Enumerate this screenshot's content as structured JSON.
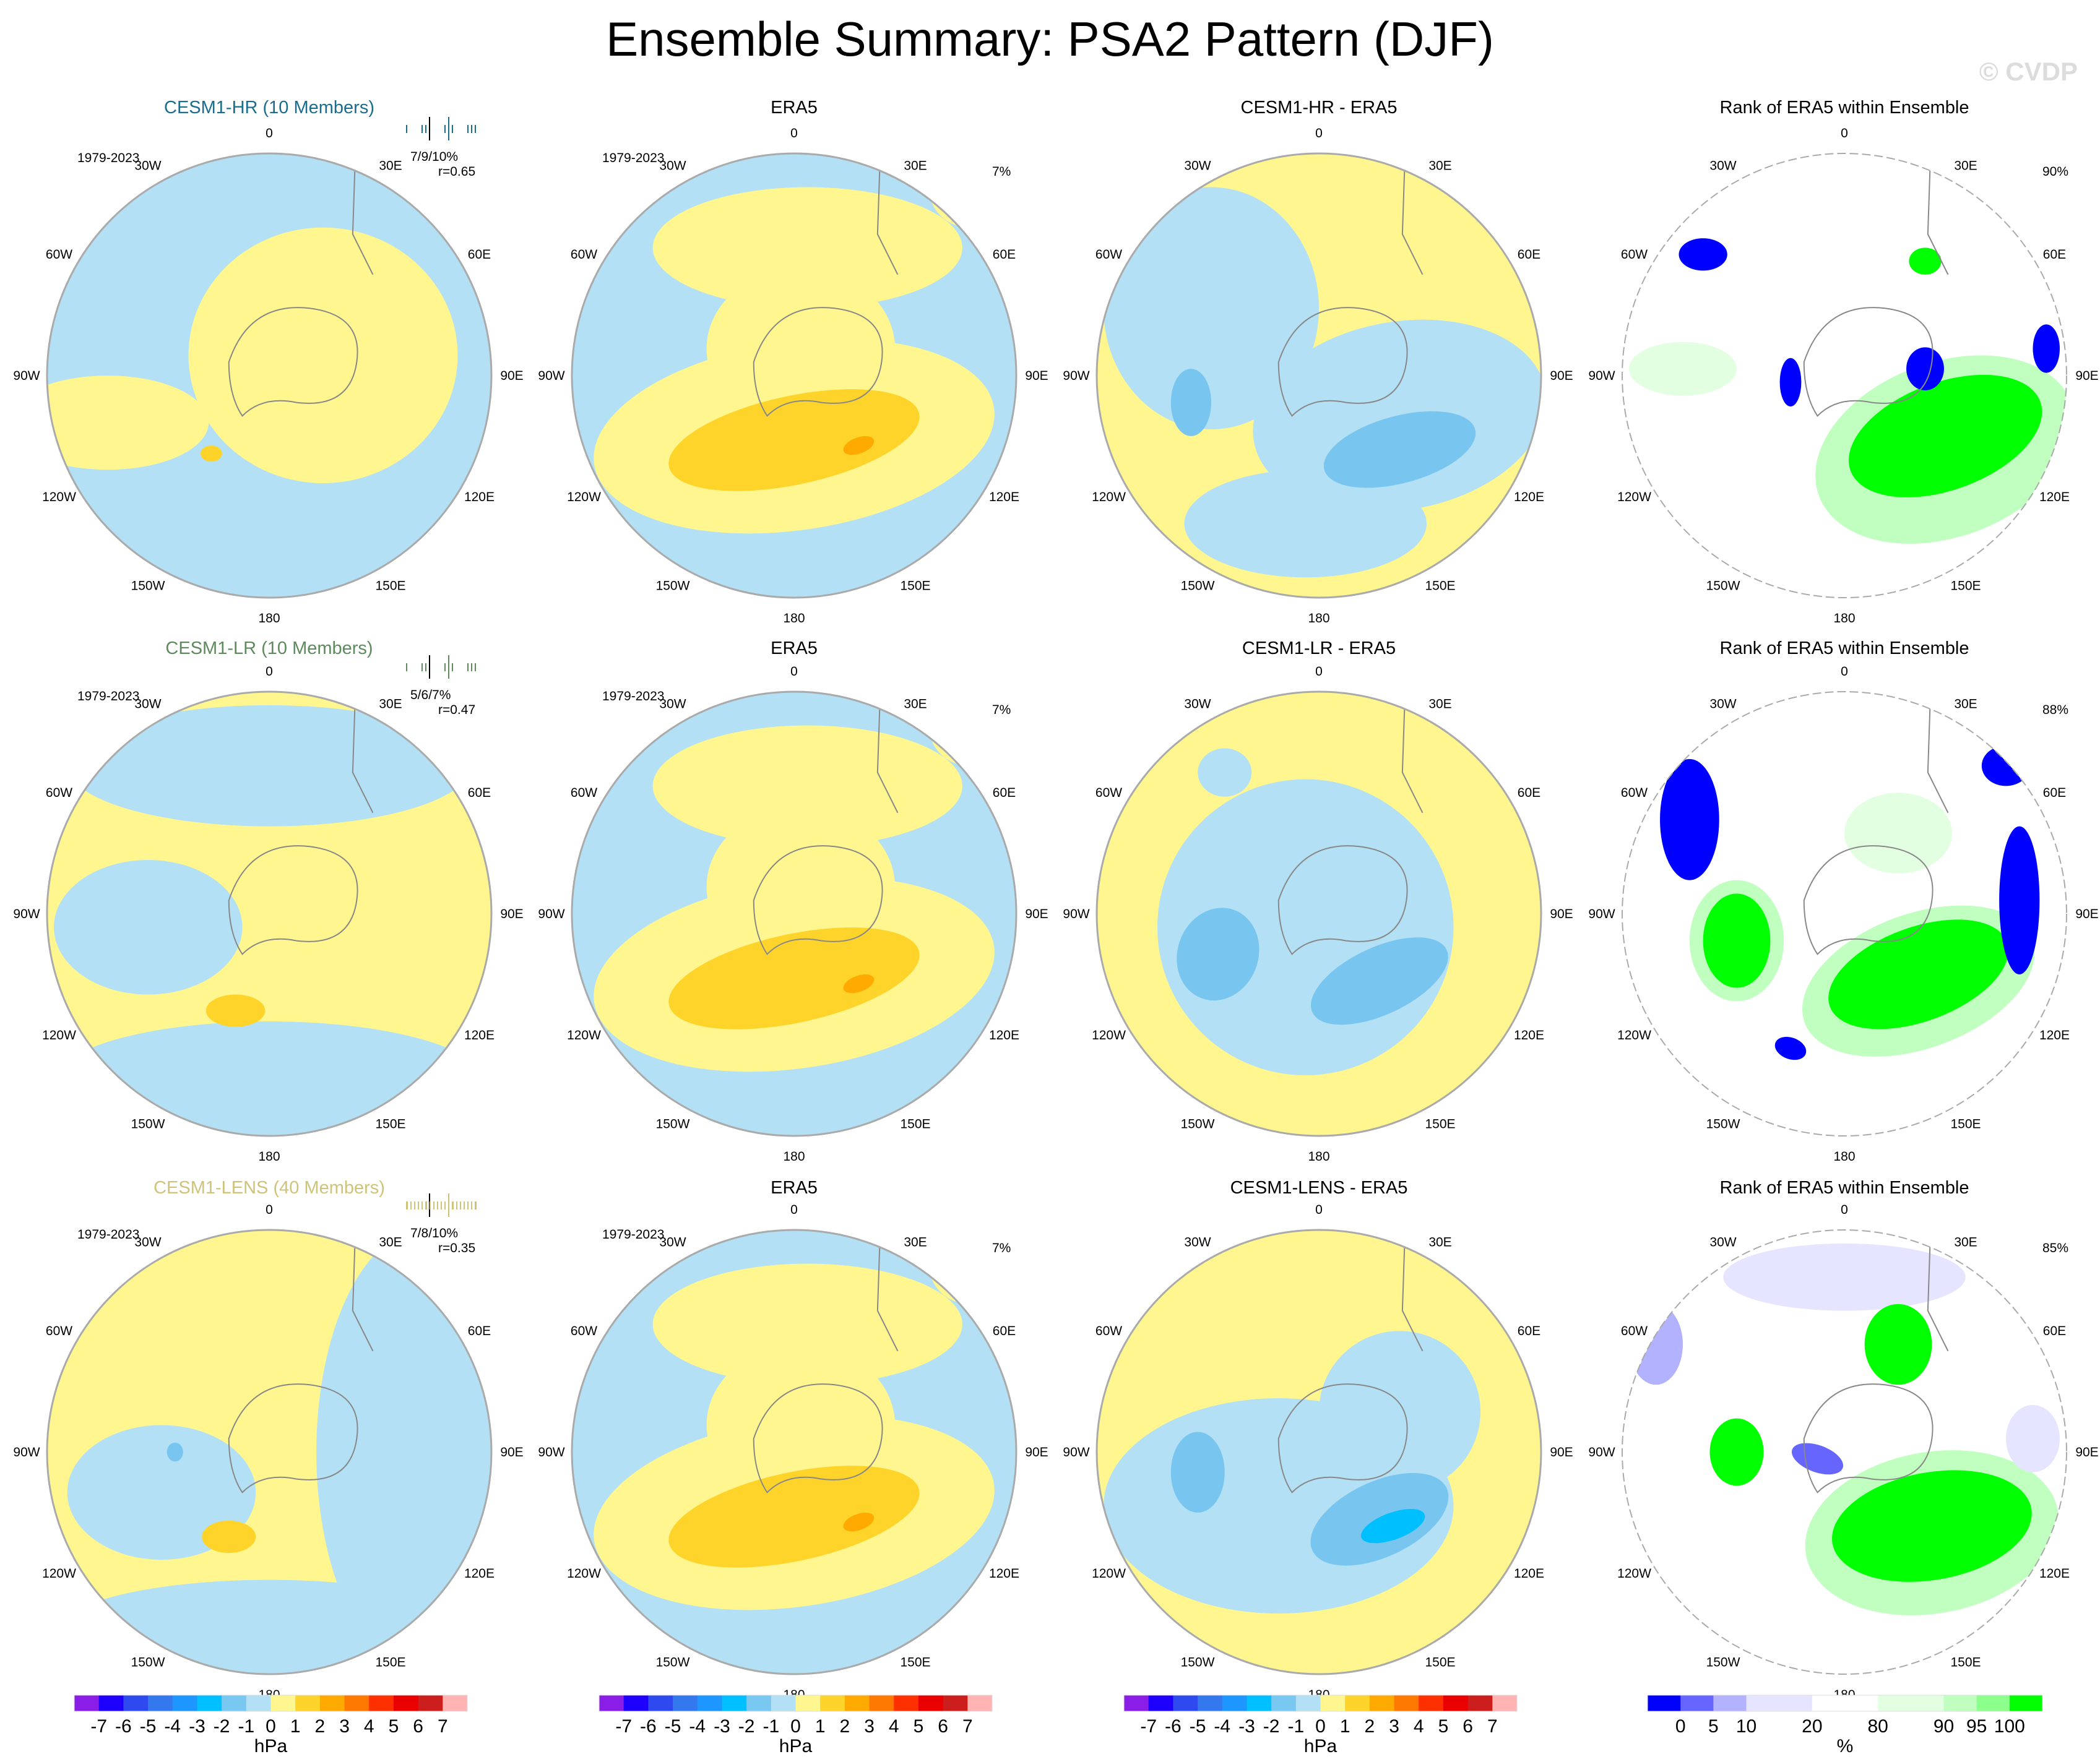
{
  "title": "Ensemble Summary: PSA2 Pattern (DJF)",
  "watermark": "© CVDP",
  "lon_labels": [
    "0",
    "30E",
    "60E",
    "90E",
    "120E",
    "150E",
    "180",
    "150W",
    "120W",
    "90W",
    "60W",
    "30W"
  ],
  "field_colors": {
    "blue_1": "#b3e0f4",
    "blue_2": "#78c6f0",
    "blue_3": "#00bfff",
    "yellow_1": "#fff68f",
    "yellow_2": "#ffd42a",
    "orange": "#ffaa00",
    "white": "#ffffff",
    "green_1": "#e2ffe2",
    "green_2": "#c0ffc0",
    "green_3": "#8cff8c",
    "green_4": "#00ff00",
    "lav_1": "#e5e5ff",
    "lav_2": "#b2b2ff",
    "lav_3": "#6666ff",
    "lav_4": "#0000ff"
  },
  "rows": [
    {
      "model": {
        "title": "CESM1-HR (10 Members)",
        "color": "#1a6d8c",
        "period": "1979-2023",
        "pct": "7/9/10%",
        "r": "r=0.65"
      },
      "obs": {
        "title": "ERA5",
        "period": "1979-2023",
        "pct": "7%"
      },
      "diff": {
        "title": "CESM1-HR - ERA5"
      },
      "rank": {
        "title": "Rank of ERA5 within Ensemble",
        "pct": "90%"
      }
    },
    {
      "model": {
        "title": "CESM1-LR (10 Members)",
        "color": "#5e8a5e",
        "period": "1979-2023",
        "pct": "5/6/7%",
        "r": "r=0.47"
      },
      "obs": {
        "title": "ERA5",
        "period": "1979-2023",
        "pct": "7%"
      },
      "diff": {
        "title": "CESM1-LR - ERA5"
      },
      "rank": {
        "title": "Rank of ERA5 within Ensemble",
        "pct": "88%"
      }
    },
    {
      "model": {
        "title": "CESM1-LENS (40 Members)",
        "color": "#cfc37a",
        "period": "1979-2023",
        "pct": "7/8/10%",
        "r": "r=0.35"
      },
      "obs": {
        "title": "ERA5",
        "period": "1979-2023",
        "pct": "7%"
      },
      "diff": {
        "title": "CESM1-LENS - ERA5"
      },
      "rank": {
        "title": "Rank of ERA5 within Ensemble",
        "pct": "85%"
      }
    }
  ],
  "chart_data": {
    "type": "heatmap",
    "projection": "south polar stereographic",
    "colorbar_hpa": {
      "unit": "hPa",
      "labels": [
        "-7",
        "-6",
        "-5",
        "-4",
        "-3",
        "-2",
        "-1",
        "0",
        "1",
        "2",
        "3",
        "4",
        "5",
        "6",
        "7"
      ],
      "colors": [
        "#8a1ee6",
        "#1e00ff",
        "#2e4aef",
        "#3478ee",
        "#1e96ff",
        "#00c0ff",
        "#78c8f2",
        "#b3e0f4",
        "#fff68f",
        "#ffd42a",
        "#ffaa00",
        "#ff7800",
        "#ff3000",
        "#ea0000",
        "#cd1e1e",
        "#ffb3b3"
      ]
    },
    "colorbar_rank": {
      "unit": "%",
      "labels": [
        "0",
        "5",
        "10",
        "20",
        "80",
        "90",
        "95",
        "100"
      ],
      "colors": [
        "#0000ff",
        "#6666ff",
        "#b2b2ff",
        "#e5e5ff",
        "#e5e5ff",
        "#ffffff",
        "#ffffff",
        "#e2ffe2",
        "#e2ffe2",
        "#c0ffc0",
        "#8cff8c",
        "#00ff00"
      ]
    }
  }
}
